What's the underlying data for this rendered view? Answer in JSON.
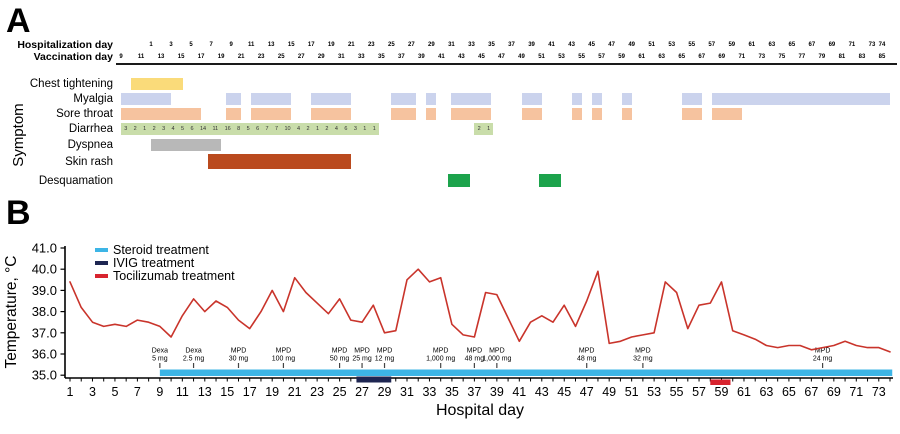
{
  "figure": {
    "panel_a_letter": "A",
    "panel_b_letter": "B"
  },
  "panel_a": {
    "y_axis_label": "Symptom",
    "timeline": {
      "min_day": 8.5,
      "max_day": 86.5,
      "unit": "vaccination day"
    },
    "header_rows": [
      {
        "label": "Hospitalization day",
        "offset": 11,
        "days": [
          1,
          3,
          5,
          7,
          9,
          11,
          13,
          15,
          17,
          19,
          21,
          23,
          25,
          27,
          29,
          31,
          33,
          35,
          37,
          39,
          41,
          43,
          45,
          47,
          49,
          51,
          53,
          55,
          57,
          59,
          61,
          63,
          65,
          67,
          69,
          71,
          73,
          74
        ]
      },
      {
        "label": "Vaccination day",
        "offset": 0,
        "days": [
          9,
          11,
          13,
          15,
          17,
          19,
          21,
          23,
          25,
          27,
          29,
          31,
          33,
          35,
          37,
          39,
          41,
          43,
          45,
          47,
          49,
          51,
          53,
          55,
          57,
          59,
          61,
          63,
          65,
          67,
          69,
          71,
          73,
          75,
          77,
          79,
          81,
          83,
          85
        ]
      }
    ],
    "symptoms": [
      {
        "label": "Chest tightening",
        "color": "#FADB7A",
        "bars": [
          {
            "start": 10,
            "end": 15.2
          }
        ]
      },
      {
        "label": "Myalgia",
        "color": "#CBD3ED",
        "bars": [
          {
            "start": 9,
            "end": 14
          },
          {
            "start": 19.5,
            "end": 21
          },
          {
            "start": 22,
            "end": 26
          },
          {
            "start": 28,
            "end": 32
          },
          {
            "start": 36,
            "end": 38.5
          },
          {
            "start": 39.5,
            "end": 40.5
          },
          {
            "start": 42,
            "end": 46
          },
          {
            "start": 49,
            "end": 51
          },
          {
            "start": 54,
            "end": 55
          },
          {
            "start": 56,
            "end": 57
          },
          {
            "start": 59,
            "end": 60
          },
          {
            "start": 65,
            "end": 67
          },
          {
            "start": 68,
            "end": 85.8
          }
        ]
      },
      {
        "label": "Sore throat",
        "color": "#F6C39F",
        "bars": [
          {
            "start": 9,
            "end": 17
          },
          {
            "start": 19.5,
            "end": 21
          },
          {
            "start": 22,
            "end": 26
          },
          {
            "start": 28,
            "end": 32
          },
          {
            "start": 36,
            "end": 38.5
          },
          {
            "start": 39.5,
            "end": 40.5
          },
          {
            "start": 42,
            "end": 46
          },
          {
            "start": 49,
            "end": 51
          },
          {
            "start": 54,
            "end": 55
          },
          {
            "start": 56,
            "end": 57
          },
          {
            "start": 59,
            "end": 60
          },
          {
            "start": 65,
            "end": 67
          },
          {
            "start": 68,
            "end": 71
          }
        ]
      },
      {
        "label": "Diarrhea",
        "color": "#C9DDAA",
        "bars": [
          {
            "start": 9,
            "end": 34.8,
            "counts": [
              3,
              2,
              1,
              2,
              3,
              4,
              5,
              6,
              14,
              11,
              16,
              8,
              5,
              6,
              7,
              7,
              10,
              4,
              2,
              1,
              2,
              4,
              6,
              3,
              1,
              1
            ]
          },
          {
            "start": 44.3,
            "end": 46.2,
            "counts": [
              2,
              1
            ]
          }
        ]
      },
      {
        "label": "Dyspnea",
        "color": "#B8B8B8",
        "bars": [
          {
            "start": 12,
            "end": 19
          }
        ]
      },
      {
        "label": "Skin rash",
        "color": "#BA4A1E",
        "bars": [
          {
            "start": 17.7,
            "end": 32
          }
        ]
      },
      {
        "label": "Desquamation",
        "color": "#1CA34C",
        "bars": [
          {
            "start": 41.7,
            "end": 43.9
          },
          {
            "start": 50.7,
            "end": 52.9
          }
        ]
      }
    ]
  },
  "chart_data": {
    "type": "line",
    "title": "",
    "xlabel": "Hospital day",
    "ylabel": "Temperature, °C",
    "xlim": [
      1,
      74
    ],
    "ylim": [
      35,
      41
    ],
    "grid": false,
    "legend_position": "top-left",
    "x_ticks": [
      1,
      3,
      5,
      7,
      9,
      11,
      13,
      15,
      17,
      19,
      21,
      23,
      25,
      27,
      29,
      31,
      33,
      35,
      37,
      39,
      41,
      43,
      45,
      47,
      49,
      51,
      53,
      55,
      57,
      59,
      61,
      63,
      65,
      67,
      69,
      71,
      73
    ],
    "y_ticks": [
      35,
      36,
      37,
      38,
      39,
      40,
      41
    ],
    "series": [
      {
        "name": "Temperature",
        "color": "#C9342B",
        "x_start_day": 1,
        "values": [
          39.4,
          38.2,
          37.5,
          37.3,
          37.4,
          37.3,
          37.6,
          37.5,
          37.3,
          36.8,
          37.8,
          38.6,
          38.0,
          38.5,
          38.2,
          37.6,
          37.2,
          38.0,
          39.0,
          38.0,
          39.6,
          38.9,
          38.4,
          37.9,
          38.6,
          37.6,
          37.5,
          38.3,
          37.0,
          37.1,
          39.5,
          40.0,
          39.4,
          39.6,
          37.4,
          36.9,
          36.8,
          38.9,
          38.8,
          37.7,
          36.6,
          37.5,
          37.8,
          37.5,
          38.3,
          37.3,
          38.5,
          39.9,
          36.5,
          36.6,
          36.8,
          36.9,
          37.0,
          39.4,
          38.9,
          37.2,
          38.3,
          38.4,
          39.4,
          37.1,
          36.9,
          36.7,
          36.4,
          36.3,
          36.4,
          36.4,
          36.2,
          36.3,
          36.4,
          36.6,
          36.4,
          36.3,
          36.3,
          36.1
        ]
      }
    ],
    "legend": [
      {
        "label": "Steroid treatment",
        "color": "#3DB5E6"
      },
      {
        "label": "IVIG treatment",
        "color": "#1E2652"
      },
      {
        "label": "Tocilizumab treatment",
        "color": "#D8242F"
      }
    ],
    "treatments": [
      {
        "name": "Steroid treatment",
        "color": "#3DB5E6",
        "start_day": 9,
        "end_day": 74.2
      },
      {
        "name": "IVIG treatment",
        "color": "#1E2652",
        "start_day": 26.5,
        "end_day": 29.6
      },
      {
        "name": "Tocilizumab treatment",
        "color": "#D8242F",
        "start_day": 58,
        "end_day": 59.8
      }
    ],
    "annotations": [
      {
        "line1": "Dexa",
        "line2": "5 mg",
        "day": 9
      },
      {
        "line1": "Dexa",
        "line2": "2.5 mg",
        "day": 12
      },
      {
        "line1": "MPD",
        "line2": "30 mg",
        "day": 16
      },
      {
        "line1": "MPD",
        "line2": "100 mg",
        "day": 20
      },
      {
        "line1": "MPD",
        "line2": "50 mg",
        "day": 25
      },
      {
        "line1": "MPD",
        "line2": "25 mg",
        "day": 27
      },
      {
        "line1": "MPD",
        "line2": "12 mg",
        "day": 29
      },
      {
        "line1": "MPD",
        "line2": "1,000 mg",
        "day": 34
      },
      {
        "line1": "MPD",
        "line2": "48 mg",
        "day": 37
      },
      {
        "line1": "MPD",
        "line2": "1,000 mg",
        "day": 39
      },
      {
        "line1": "MPD",
        "line2": "48 mg",
        "day": 47
      },
      {
        "line1": "MPD",
        "line2": "32 mg",
        "day": 52
      },
      {
        "line1": "MPD",
        "line2": "24 mg",
        "day": 68
      }
    ]
  }
}
